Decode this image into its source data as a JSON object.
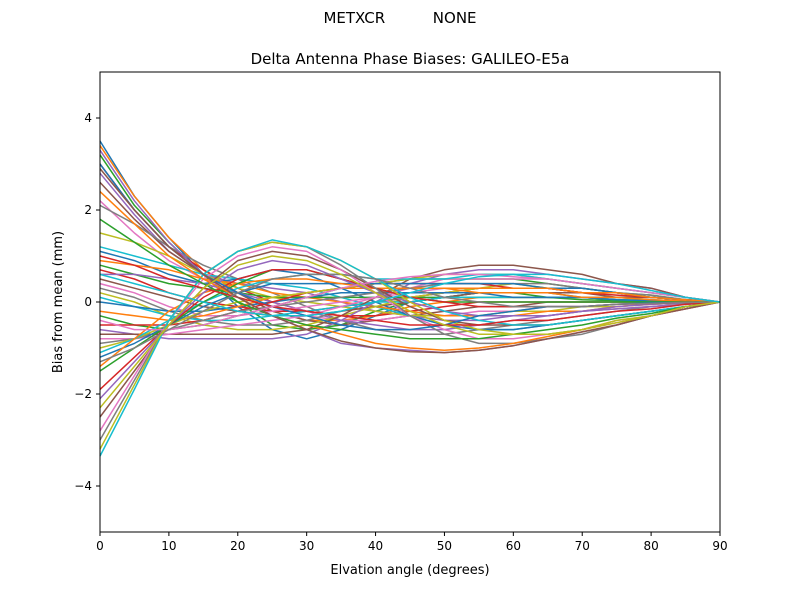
{
  "suptitle": "METXCR          NONE",
  "chart_data": {
    "type": "line",
    "title": "Delta Antenna Phase Biases: GALILEO-E5a",
    "xlabel": "Elvation angle (degrees)",
    "ylabel": "Bias from mean (mm)",
    "xlim": [
      0,
      90
    ],
    "ylim": [
      -5,
      5
    ],
    "xticks": [
      0,
      10,
      20,
      30,
      40,
      50,
      60,
      70,
      80,
      90
    ],
    "yticks": [
      -4,
      -2,
      0,
      2,
      4
    ],
    "grid": false,
    "legend": "none",
    "x": [
      0,
      5,
      10,
      15,
      20,
      25,
      30,
      35,
      40,
      45,
      50,
      55,
      60,
      65,
      70,
      75,
      80,
      85,
      90
    ],
    "palette": [
      "#1f77b4",
      "#ff7f0e",
      "#2ca02c",
      "#d62728",
      "#9467bd",
      "#8c564b",
      "#e377c2",
      "#7f7f7f",
      "#bcbd22",
      "#17becf"
    ],
    "series": [
      {
        "values": [
          3.5,
          2.3,
          1.4,
          0.6,
          -0.1,
          -0.6,
          -0.8,
          -0.6,
          -0.3,
          0.0,
          0.1,
          0.2,
          0.2,
          0.2,
          0.1,
          0.1,
          0.05,
          0.02,
          0
        ]
      },
      {
        "values": [
          3.4,
          2.3,
          1.4,
          0.7,
          0.2,
          -0.2,
          -0.4,
          -0.4,
          -0.3,
          -0.1,
          0.0,
          0.1,
          0.1,
          0.1,
          0.1,
          0.05,
          0.03,
          0.01,
          0
        ]
      },
      {
        "values": [
          3.2,
          2.1,
          1.3,
          0.6,
          0.0,
          -0.5,
          -0.6,
          -0.5,
          -0.2,
          0.0,
          0.1,
          0.2,
          0.2,
          0.1,
          0.1,
          0.05,
          0.03,
          0.01,
          0
        ]
      },
      {
        "values": [
          3.0,
          2.0,
          1.2,
          0.7,
          0.3,
          0.0,
          -0.2,
          -0.3,
          -0.3,
          -0.2,
          -0.1,
          0.0,
          0.0,
          0.0,
          0.0,
          0.0,
          0.0,
          0.0,
          0
        ]
      },
      {
        "values": [
          2.8,
          1.9,
          1.1,
          0.6,
          0.4,
          0.3,
          0.2,
          0.0,
          -0.2,
          -0.3,
          -0.4,
          -0.4,
          -0.3,
          -0.3,
          -0.2,
          -0.15,
          -0.1,
          -0.05,
          0
        ]
      },
      {
        "values": [
          2.6,
          1.8,
          1.1,
          0.6,
          0.2,
          -0.2,
          -0.4,
          -0.5,
          -0.4,
          -0.3,
          -0.2,
          -0.1,
          -0.1,
          0.0,
          0.0,
          0.0,
          0.0,
          0.0,
          0
        ]
      },
      {
        "values": [
          2.2,
          1.5,
          0.9,
          0.5,
          0.2,
          -0.1,
          -0.3,
          -0.4,
          -0.4,
          -0.3,
          -0.3,
          -0.2,
          -0.2,
          -0.1,
          -0.1,
          -0.05,
          -0.03,
          -0.01,
          0
        ]
      },
      {
        "values": [
          2.1,
          1.7,
          1.2,
          0.8,
          0.5,
          0.2,
          -0.1,
          -0.4,
          -0.6,
          -0.7,
          -0.7,
          -0.6,
          -0.5,
          -0.4,
          -0.3,
          -0.2,
          -0.1,
          -0.05,
          0
        ]
      },
      {
        "values": [
          1.5,
          1.3,
          1.0,
          0.6,
          0.3,
          0.1,
          0.0,
          -0.1,
          -0.2,
          -0.3,
          -0.3,
          -0.3,
          -0.2,
          -0.2,
          -0.1,
          -0.1,
          -0.05,
          -0.02,
          0
        ]
      },
      {
        "values": [
          1.2,
          1.0,
          0.8,
          0.6,
          0.5,
          0.4,
          0.3,
          0.1,
          -0.1,
          -0.3,
          -0.5,
          -0.6,
          -0.6,
          -0.5,
          -0.4,
          -0.3,
          -0.2,
          -0.1,
          0
        ]
      },
      {
        "values": [
          1.1,
          0.9,
          0.6,
          0.4,
          0.5,
          0.7,
          0.6,
          0.3,
          0.0,
          -0.3,
          -0.5,
          -0.6,
          -0.6,
          -0.5,
          -0.4,
          -0.3,
          -0.2,
          -0.1,
          0
        ]
      },
      {
        "values": [
          0.9,
          0.8,
          0.7,
          0.5,
          0.4,
          0.2,
          0.1,
          0.0,
          -0.1,
          -0.2,
          -0.3,
          -0.3,
          -0.3,
          -0.2,
          -0.2,
          -0.1,
          -0.05,
          -0.02,
          0
        ]
      },
      {
        "values": [
          0.8,
          0.6,
          0.4,
          0.3,
          0.2,
          0.1,
          0.1,
          0.1,
          0.1,
          0.1,
          0.1,
          0.1,
          0.1,
          0.1,
          0.05,
          0.03,
          0.02,
          0.01,
          0
        ]
      },
      {
        "values": [
          0.7,
          0.5,
          0.2,
          0.0,
          -0.1,
          -0.2,
          -0.2,
          -0.1,
          0.0,
          0.1,
          0.2,
          0.3,
          0.3,
          0.3,
          0.2,
          0.2,
          0.1,
          0.05,
          0
        ]
      },
      {
        "values": [
          0.6,
          0.6,
          0.5,
          0.4,
          0.2,
          0.0,
          -0.2,
          -0.4,
          -0.5,
          -0.6,
          -0.6,
          -0.5,
          -0.4,
          -0.3,
          -0.2,
          -0.1,
          -0.05,
          -0.02,
          0
        ]
      },
      {
        "values": [
          0.5,
          0.3,
          0.1,
          -0.1,
          -0.2,
          -0.3,
          -0.3,
          -0.2,
          -0.1,
          0.0,
          0.1,
          0.2,
          0.2,
          0.2,
          0.2,
          0.1,
          0.1,
          0.05,
          0
        ]
      },
      {
        "values": [
          0.4,
          0.2,
          -0.1,
          -0.3,
          -0.3,
          -0.2,
          -0.1,
          0.0,
          0.1,
          0.2,
          0.3,
          0.3,
          0.3,
          0.3,
          0.2,
          0.2,
          0.1,
          0.05,
          0
        ]
      },
      {
        "values": [
          0.3,
          0.1,
          -0.2,
          -0.4,
          -0.5,
          -0.5,
          -0.4,
          -0.2,
          0.0,
          0.1,
          0.2,
          0.3,
          0.3,
          0.3,
          0.2,
          0.2,
          0.1,
          0.05,
          0
        ]
      },
      {
        "values": [
          0.2,
          0.0,
          -0.3,
          -0.5,
          -0.6,
          -0.6,
          -0.5,
          -0.3,
          -0.1,
          0.1,
          0.2,
          0.3,
          0.4,
          0.3,
          0.3,
          0.2,
          0.1,
          0.05,
          0
        ]
      },
      {
        "values": [
          0.1,
          -0.1,
          -0.3,
          -0.4,
          -0.4,
          -0.3,
          -0.2,
          -0.1,
          0.0,
          0.0,
          0.1,
          0.1,
          0.1,
          0.1,
          0.1,
          0.05,
          0.03,
          0.01,
          0
        ]
      },
      {
        "values": [
          0.0,
          -0.1,
          -0.2,
          -0.2,
          -0.1,
          0.0,
          0.1,
          0.2,
          0.2,
          0.2,
          0.2,
          0.2,
          0.1,
          0.1,
          0.1,
          0.05,
          0.03,
          0.01,
          0
        ]
      },
      {
        "values": [
          -0.2,
          -0.3,
          -0.4,
          -0.3,
          -0.1,
          0.1,
          0.2,
          0.3,
          0.3,
          0.3,
          0.3,
          0.2,
          0.2,
          0.2,
          0.1,
          0.1,
          0.05,
          0.02,
          0
        ]
      },
      {
        "values": [
          -0.3,
          -0.5,
          -0.6,
          -0.5,
          -0.3,
          -0.1,
          0.1,
          0.3,
          0.4,
          0.5,
          0.5,
          0.5,
          0.5,
          0.4,
          0.3,
          0.2,
          0.15,
          0.05,
          0
        ]
      },
      {
        "values": [
          -0.5,
          -0.5,
          -0.5,
          -0.4,
          -0.2,
          0.0,
          0.2,
          0.3,
          0.4,
          0.4,
          0.4,
          0.4,
          0.3,
          0.3,
          0.2,
          0.15,
          0.1,
          0.05,
          0
        ]
      },
      {
        "values": [
          -0.6,
          -0.7,
          -0.8,
          -0.8,
          -0.8,
          -0.8,
          -0.7,
          -0.4,
          0.0,
          0.4,
          0.6,
          0.7,
          0.7,
          0.6,
          0.5,
          0.4,
          0.3,
          0.1,
          0
        ]
      },
      {
        "values": [
          -0.7,
          -0.7,
          -0.7,
          -0.7,
          -0.7,
          -0.7,
          -0.6,
          -0.3,
          0.1,
          0.5,
          0.7,
          0.8,
          0.8,
          0.7,
          0.6,
          0.4,
          0.3,
          0.1,
          0
        ]
      },
      {
        "values": [
          -0.8,
          -0.8,
          -0.7,
          -0.6,
          -0.5,
          -0.4,
          -0.3,
          -0.1,
          0.1,
          0.3,
          0.5,
          0.5,
          0.5,
          0.5,
          0.4,
          0.3,
          0.2,
          0.1,
          0
        ]
      },
      {
        "values": [
          -0.9,
          -0.8,
          -0.6,
          -0.4,
          -0.2,
          -0.1,
          0.0,
          0.1,
          0.2,
          0.3,
          0.4,
          0.4,
          0.4,
          0.4,
          0.3,
          0.2,
          0.15,
          0.05,
          0
        ]
      },
      {
        "values": [
          -1.0,
          -0.8,
          -0.5,
          -0.2,
          0.0,
          0.1,
          0.2,
          0.3,
          0.4,
          0.5,
          0.6,
          0.6,
          0.6,
          0.5,
          0.4,
          0.3,
          0.2,
          0.1,
          0
        ]
      },
      {
        "values": [
          -1.1,
          -0.8,
          -0.4,
          0.0,
          0.3,
          0.5,
          0.6,
          0.6,
          0.5,
          0.5,
          0.5,
          0.6,
          0.6,
          0.5,
          0.4,
          0.3,
          0.2,
          0.1,
          0
        ]
      },
      {
        "values": [
          -1.2,
          -0.9,
          -0.5,
          -0.1,
          0.2,
          0.4,
          0.4,
          0.4,
          0.4,
          0.4,
          0.4,
          0.4,
          0.4,
          0.3,
          0.3,
          0.2,
          0.1,
          0.05,
          0
        ]
      },
      {
        "values": [
          -1.4,
          -0.8,
          -0.2,
          0.2,
          0.4,
          0.5,
          0.5,
          0.4,
          0.3,
          0.3,
          0.3,
          0.3,
          0.3,
          0.3,
          0.2,
          0.2,
          0.1,
          0.05,
          0
        ]
      },
      {
        "values": [
          -1.5,
          -1.0,
          -0.5,
          0.0,
          0.4,
          0.7,
          0.7,
          0.5,
          0.3,
          0.1,
          0.0,
          0.0,
          0.0,
          0.0,
          0.0,
          0.0,
          0.0,
          0.0,
          0
        ]
      },
      {
        "values": [
          -1.9,
          -1.2,
          -0.5,
          0.1,
          0.5,
          0.7,
          0.7,
          0.5,
          0.3,
          0.1,
          0.0,
          -0.1,
          -0.1,
          -0.1,
          -0.1,
          -0.05,
          -0.03,
          -0.01,
          0
        ]
      },
      {
        "values": [
          -2.1,
          -1.3,
          -0.5,
          0.2,
          0.7,
          0.9,
          0.8,
          0.5,
          0.2,
          0.0,
          -0.2,
          -0.3,
          -0.3,
          -0.3,
          -0.2,
          -0.15,
          -0.1,
          -0.05,
          0
        ]
      },
      {
        "values": [
          -2.5,
          -1.5,
          -0.5,
          0.3,
          0.9,
          1.1,
          1.0,
          0.7,
          0.3,
          -0.1,
          -0.4,
          -0.5,
          -0.5,
          -0.5,
          -0.4,
          -0.3,
          -0.2,
          -0.1,
          0
        ]
      },
      {
        "values": [
          -2.8,
          -1.6,
          -0.4,
          0.5,
          1.0,
          1.2,
          1.1,
          0.7,
          0.2,
          -0.3,
          -0.6,
          -0.8,
          -0.8,
          -0.7,
          -0.6,
          -0.4,
          -0.3,
          -0.1,
          0
        ]
      },
      {
        "values": [
          -3.0,
          -1.7,
          -0.4,
          0.6,
          1.1,
          1.3,
          1.2,
          0.8,
          0.3,
          -0.3,
          -0.7,
          -0.9,
          -0.9,
          -0.8,
          -0.7,
          -0.5,
          -0.3,
          -0.1,
          0
        ]
      },
      {
        "values": [
          -3.2,
          -1.8,
          -0.4,
          0.6,
          1.1,
          1.3,
          1.2,
          0.9,
          0.5,
          0.0,
          -0.4,
          -0.6,
          -0.7,
          -0.7,
          -0.6,
          -0.4,
          -0.3,
          -0.1,
          0
        ]
      },
      {
        "values": [
          -3.35,
          -1.9,
          -0.4,
          0.6,
          1.1,
          1.35,
          1.2,
          0.9,
          0.5,
          0.1,
          -0.2,
          -0.4,
          -0.5,
          -0.5,
          -0.4,
          -0.3,
          -0.2,
          -0.1,
          0
        ]
      },
      {
        "values": [
          3.0,
          2.0,
          1.2,
          0.6,
          0.2,
          -0.1,
          -0.3,
          -0.5,
          -0.6,
          -0.6,
          -0.5,
          -0.3,
          -0.2,
          -0.1,
          -0.1,
          -0.05,
          -0.02,
          -0.01,
          0
        ]
      },
      {
        "values": [
          2.4,
          1.7,
          1.0,
          0.5,
          0.1,
          -0.3,
          -0.5,
          -0.7,
          -0.9,
          -1.0,
          -1.05,
          -1.0,
          -0.9,
          -0.75,
          -0.6,
          -0.45,
          -0.3,
          -0.15,
          0
        ]
      },
      {
        "values": [
          1.8,
          1.3,
          0.8,
          0.4,
          0.0,
          -0.3,
          -0.5,
          -0.6,
          -0.7,
          -0.8,
          -0.8,
          -0.8,
          -0.7,
          -0.6,
          -0.5,
          -0.35,
          -0.25,
          -0.1,
          0
        ]
      },
      {
        "values": [
          1.0,
          0.8,
          0.5,
          0.3,
          0.1,
          -0.1,
          -0.2,
          -0.3,
          -0.4,
          -0.5,
          -0.5,
          -0.5,
          -0.4,
          -0.4,
          -0.3,
          -0.2,
          -0.15,
          -0.05,
          0
        ]
      },
      {
        "values": [
          3.3,
          2.2,
          1.3,
          0.6,
          0.1,
          -0.3,
          -0.6,
          -0.9,
          -1.0,
          -1.05,
          -1.1,
          -1.05,
          -0.95,
          -0.8,
          -0.65,
          -0.5,
          -0.3,
          -0.15,
          0
        ]
      },
      {
        "values": [
          2.9,
          2.0,
          1.2,
          0.6,
          0.1,
          -0.3,
          -0.6,
          -0.85,
          -1.0,
          -1.08,
          -1.1,
          -1.05,
          -0.95,
          -0.8,
          -0.65,
          -0.5,
          -0.3,
          -0.15,
          0
        ]
      },
      {
        "values": [
          -0.4,
          -0.6,
          -0.6,
          -0.5,
          -0.3,
          -0.1,
          0.1,
          0.3,
          0.45,
          0.55,
          0.6,
          0.6,
          0.55,
          0.5,
          0.4,
          0.3,
          0.2,
          0.1,
          0
        ]
      },
      {
        "values": [
          -1.3,
          -1.0,
          -0.6,
          -0.2,
          0.2,
          0.5,
          0.6,
          0.6,
          0.5,
          0.3,
          0.1,
          0.0,
          -0.1,
          -0.1,
          -0.1,
          -0.05,
          -0.03,
          -0.01,
          0
        ]
      },
      {
        "values": [
          -2.3,
          -1.4,
          -0.5,
          0.3,
          0.8,
          1.0,
          0.9,
          0.6,
          0.2,
          -0.2,
          -0.5,
          -0.7,
          -0.7,
          -0.7,
          -0.6,
          -0.45,
          -0.3,
          -0.1,
          0
        ]
      },
      {
        "values": [
          0.6,
          0.4,
          0.2,
          0.0,
          -0.2,
          -0.3,
          -0.3,
          -0.2,
          0.0,
          0.2,
          0.4,
          0.55,
          0.6,
          0.6,
          0.5,
          0.4,
          0.25,
          0.1,
          0
        ]
      }
    ]
  }
}
